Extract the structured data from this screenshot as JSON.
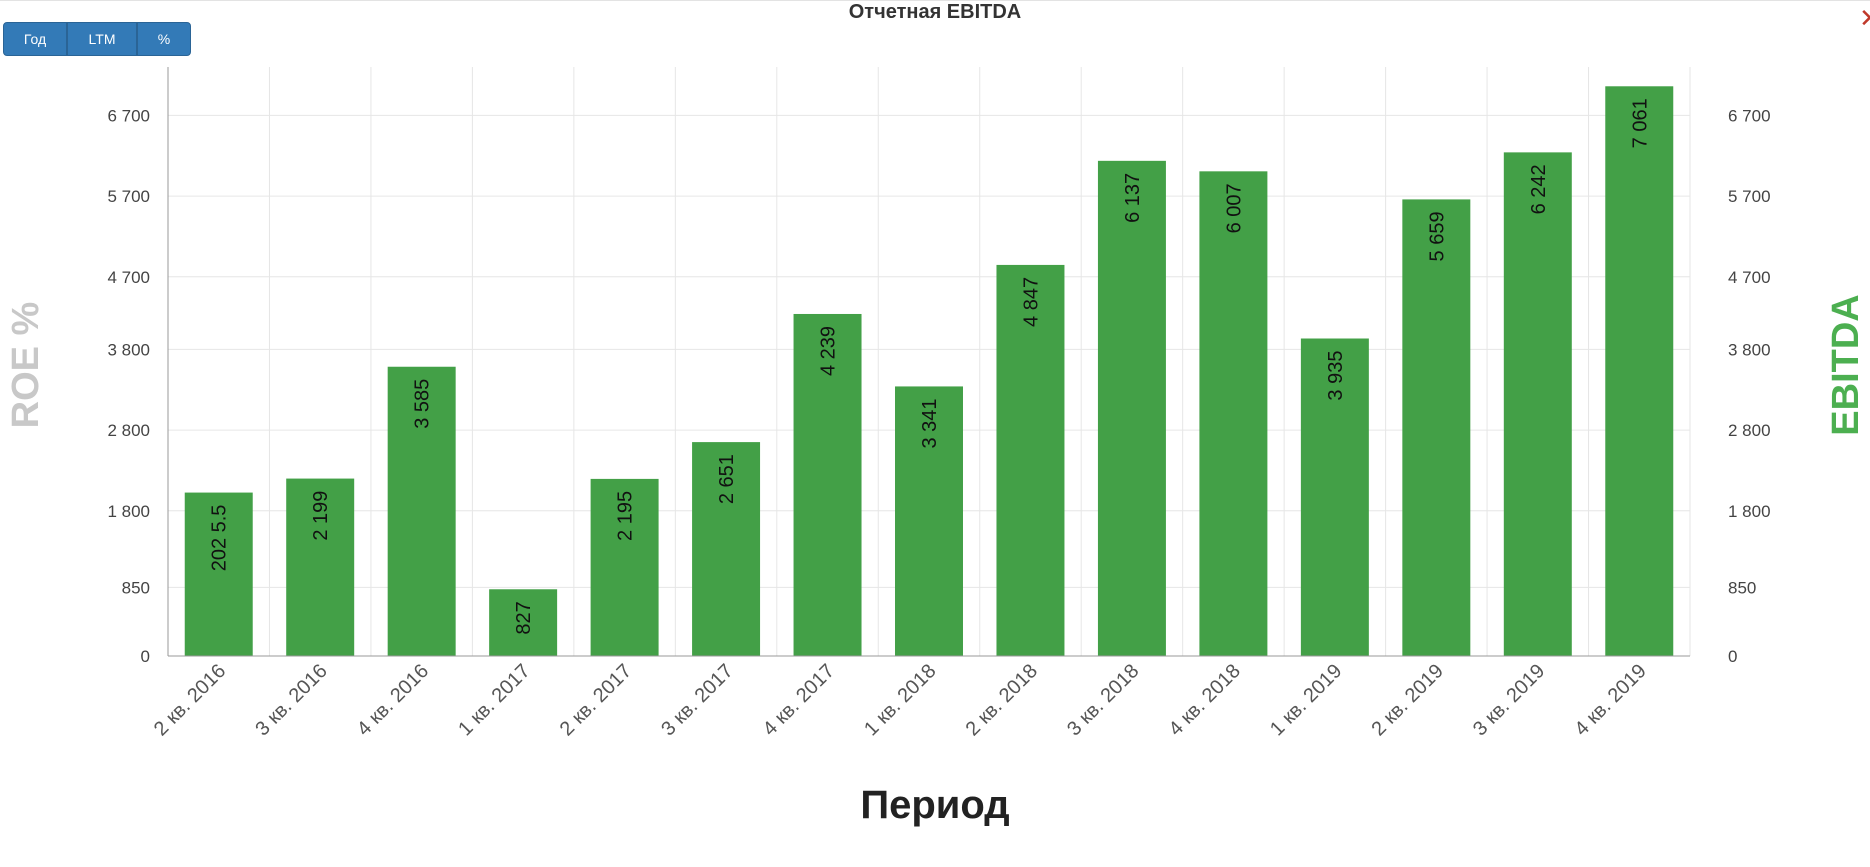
{
  "title": "Отчетная EBITDA",
  "toolbar": {
    "buttons": [
      "Год",
      "LTM",
      "%"
    ]
  },
  "close_icon": "close-icon",
  "chart_data": {
    "type": "bar",
    "categories": [
      "2 кв. 2016",
      "3 кв. 2016",
      "4 кв. 2016",
      "1 кв. 2017",
      "2 кв. 2017",
      "3 кв. 2017",
      "4 кв. 2017",
      "1 кв. 2018",
      "2 кв. 2018",
      "3 кв. 2018",
      "4 кв. 2018",
      "1 кв. 2019",
      "2 кв. 2019",
      "3 кв. 2019",
      "4 кв. 2019"
    ],
    "values": [
      2025.5,
      2199,
      3585,
      827,
      2195,
      2651,
      4239,
      3341,
      4847,
      6137,
      6007,
      3935,
      5659,
      6242,
      7061
    ],
    "labels": [
      "202 5.5",
      "2 199",
      "3 585",
      "827",
      "2 195",
      "2 651",
      "4 239",
      "3 341",
      "4 847",
      "6 137",
      "6 007",
      "3 935",
      "5 659",
      "6 242",
      "7 061"
    ],
    "ticks": [
      0,
      850,
      1800,
      2800,
      3800,
      4700,
      5700,
      6700
    ],
    "tick_labels": [
      "0",
      "850",
      "1 800",
      "2 800",
      "3 800",
      "4 700",
      "5 700",
      "6 700"
    ],
    "xlabel": "Период",
    "ylabel_left": "ROE %",
    "ylabel_right": "EBITDA",
    "ylim": [
      0,
      7300
    ],
    "grid": true,
    "colors": {
      "bar": "#43a047",
      "left_axis_title": "#c8c8c8",
      "right_axis_title": "#4caf50",
      "grid": "#e6e6e6"
    }
  }
}
